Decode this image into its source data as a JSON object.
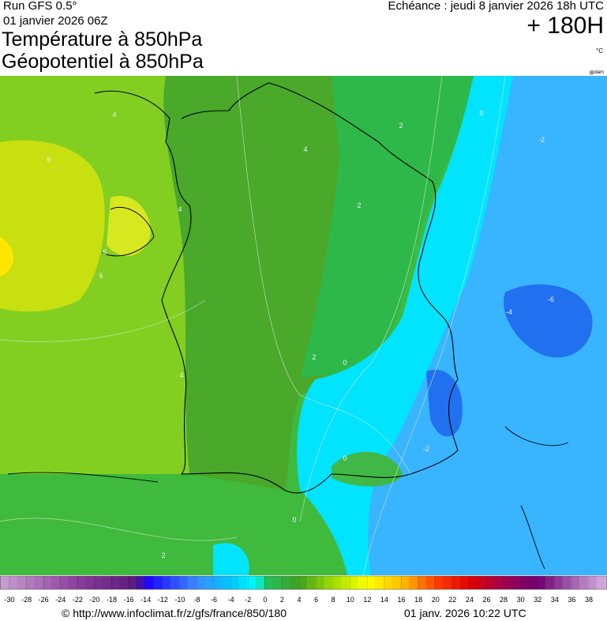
{
  "header": {
    "run": "Run GFS 0.5°",
    "run_date": "01 janvier 2026 06Z",
    "title_1": "Température à 850hPa",
    "title_2": "Géopotentiel à 850hPa",
    "valid_time": "Echéance : jeudi 8 janvier 2026 18h UTC",
    "lead_time": "+ 180H",
    "unit": "°C",
    "contour_unit": "gpdam"
  },
  "map": {
    "contour_labels": [
      "4",
      "6",
      "4",
      "6",
      "6",
      "4",
      "2",
      "2",
      "0",
      "-2",
      "-6",
      "-4",
      "2",
      "0",
      "4",
      "0",
      "0",
      "2",
      "-2"
    ]
  },
  "scale": {
    "ticks": [
      -30,
      -28,
      -26,
      -24,
      -22,
      -20,
      -18,
      -16,
      -14,
      -12,
      -10,
      -8,
      -6,
      -4,
      -2,
      0,
      2,
      4,
      6,
      8,
      10,
      12,
      14,
      16,
      18,
      20,
      22,
      24,
      26,
      28,
      30,
      32,
      34,
      36,
      38
    ]
  },
  "footer": {
    "source": "© http://www.infoclimat.fr/z/gfs/france/850/180",
    "generated": "01 janv. 2026 10:22 UTC"
  }
}
